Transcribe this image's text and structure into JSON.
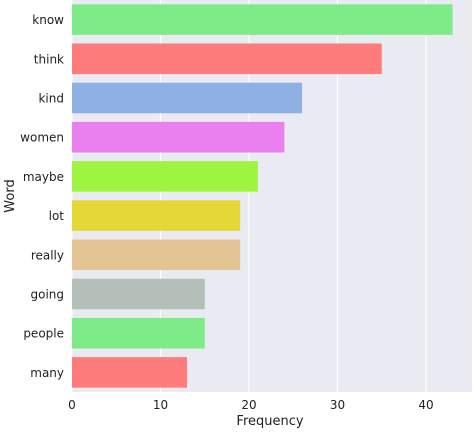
{
  "chart_data": {
    "type": "bar",
    "orientation": "horizontal",
    "title": "",
    "xlabel": "Frequency",
    "ylabel": "Word",
    "categories": [
      "know",
      "think",
      "kind",
      "women",
      "maybe",
      "lot",
      "really",
      "going",
      "people",
      "many"
    ],
    "values": [
      43,
      35,
      26,
      24,
      21,
      19,
      19,
      15,
      15,
      13
    ],
    "colors": [
      "#7deb88",
      "#ff7c7c",
      "#8eb0e3",
      "#ea7ff0",
      "#9df53f",
      "#e3d835",
      "#e2c495",
      "#b5bfba",
      "#7deb88",
      "#ff7c7c"
    ],
    "xlim": [
      0,
      45.2
    ],
    "xticks": [
      0,
      10,
      20,
      30,
      40
    ],
    "grid": true,
    "legend": "none",
    "background": "#eaeaf2"
  }
}
